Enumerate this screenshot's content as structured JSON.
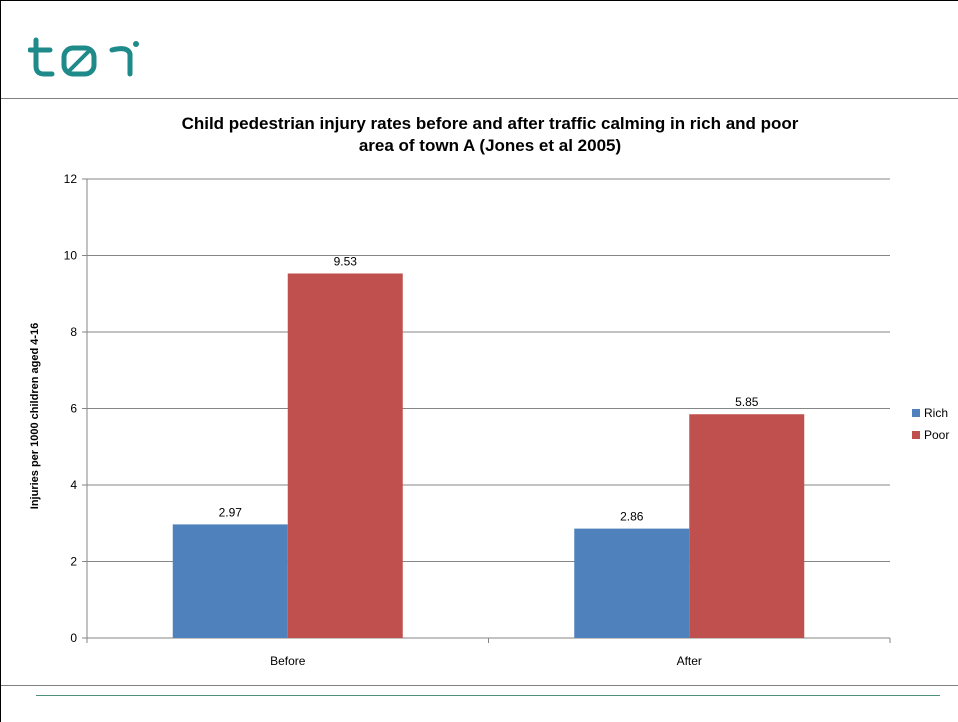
{
  "logo": {
    "text": "tøi",
    "color": "#1f8a8a"
  },
  "chart_data": {
    "type": "bar",
    "title": "Child pedestrian injury rates before and after traffic calming in rich and poor\narea of town A (Jones et al 2005)",
    "xlabel": "",
    "ylabel": "Injuries per 1000 children aged 4-16",
    "categories": [
      "Before",
      "After"
    ],
    "series": [
      {
        "name": "Rich",
        "values": [
          2.97,
          2.86
        ],
        "color": "#4f81bd"
      },
      {
        "name": "Poor",
        "values": [
          9.53,
          5.85
        ],
        "color": "#c0504d"
      }
    ],
    "value_labels": [
      [
        "2.97",
        "2.86"
      ],
      [
        "9.53",
        "5.85"
      ]
    ],
    "ylim": [
      0,
      12
    ],
    "yticks": [
      "0",
      "2",
      "4",
      "6",
      "8",
      "10",
      "12"
    ],
    "grid": true,
    "legend_position": "right"
  }
}
